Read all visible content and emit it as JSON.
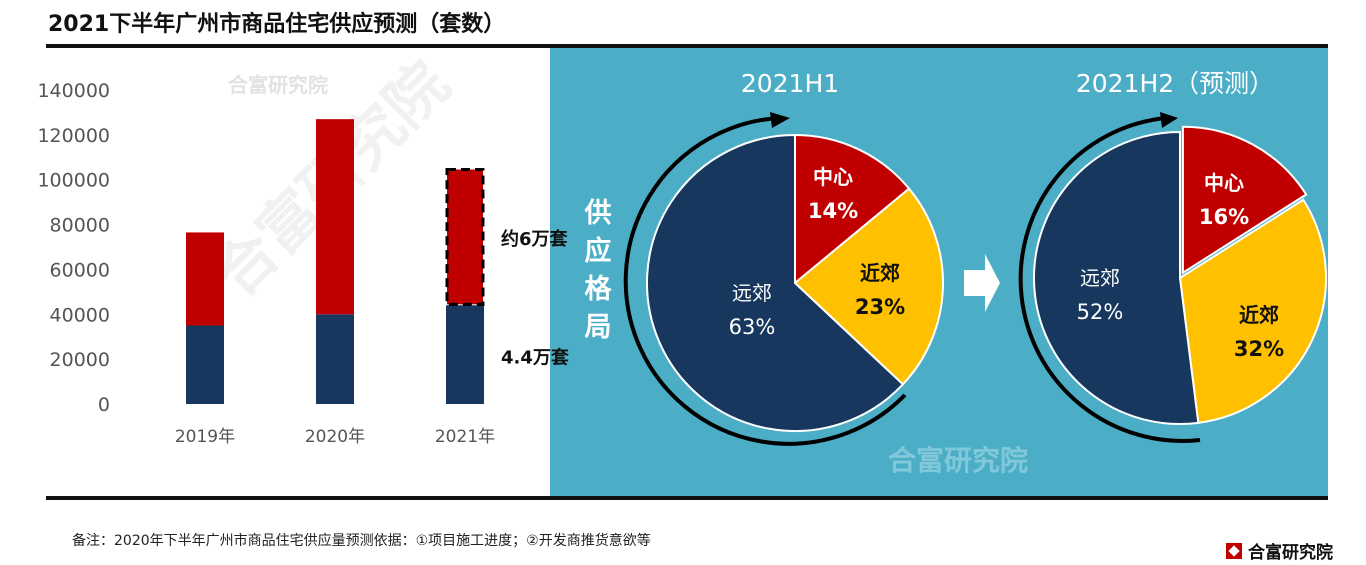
{
  "title": "2021下半年广州市商品住宅供应预测（套数）",
  "watermark": "合富研究院",
  "note": "备注：2020年下半年广州市商品住宅供应量预测依据：①项目施工进度；②开发商推货意欲等",
  "logo": "合富研究院",
  "colors": {
    "navy": "#17375e",
    "red": "#c00000",
    "yellow": "#ffc000",
    "panel": "#4badc6"
  },
  "chart_data": [
    {
      "type": "bar",
      "stacked": true,
      "categories": [
        "2019年",
        "2020年",
        "2021年"
      ],
      "ylim": [
        0,
        140000
      ],
      "yticks": [
        "0",
        "20000",
        "40000",
        "60000",
        "80000",
        "100000",
        "120000",
        "140000"
      ],
      "series": [
        {
          "values": [
            35000,
            40000,
            44000
          ],
          "color": "#17375e"
        },
        {
          "values": [
            41500,
            87000,
            61000
          ],
          "color": "#c00000"
        }
      ],
      "forecast_category": "2021年",
      "annotations": [
        "约6万套",
        "4.4万套"
      ]
    },
    {
      "type": "pie",
      "title": "2021H1",
      "slices": [
        {
          "label": "中心",
          "value": 14,
          "text": "14%",
          "color": "#c00000"
        },
        {
          "label": "近郊",
          "value": 23,
          "text": "23%",
          "color": "#ffc000"
        },
        {
          "label": "远郊",
          "value": 63,
          "text": "63%",
          "color": "#17375e"
        }
      ]
    },
    {
      "type": "pie",
      "title": "2021H2（预测）",
      "slices": [
        {
          "label": "中心",
          "value": 16,
          "text": "16%",
          "color": "#c00000"
        },
        {
          "label": "近郊",
          "value": 32,
          "text": "32%",
          "color": "#ffc000"
        },
        {
          "label": "远郊",
          "value": 52,
          "text": "52%",
          "color": "#17375e"
        }
      ]
    }
  ],
  "side_label": [
    "供",
    "应",
    "格",
    "局"
  ]
}
